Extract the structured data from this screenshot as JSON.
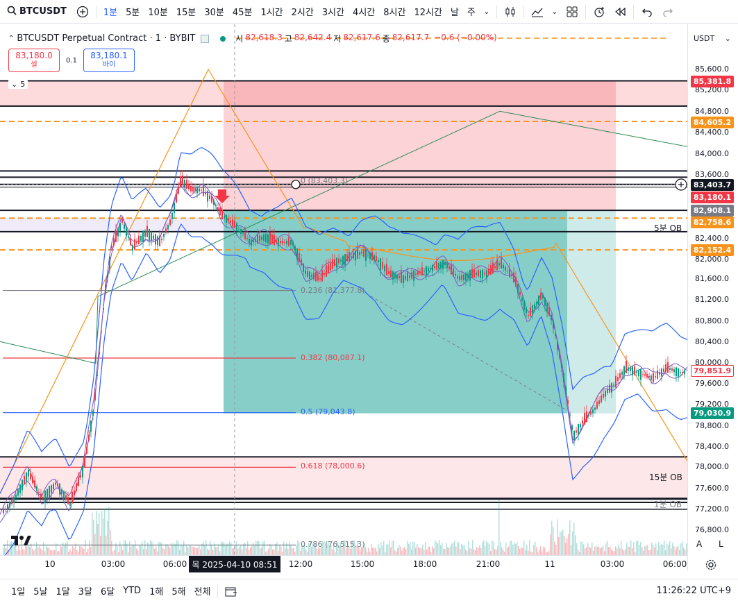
{
  "topbar": {
    "symbol": "BTCUSDT",
    "intervals": [
      "1분",
      "5분",
      "10분",
      "15분",
      "30분",
      "45분",
      "1시간",
      "2시간",
      "3시간",
      "4시간",
      "8시간",
      "12시간",
      "날",
      "주"
    ],
    "active_interval": "1분"
  },
  "legend": {
    "title": "BTCUSDT Perpetual Contract · 1 · BYBIT",
    "open_k": "시",
    "open_v": "82,618.3",
    "high_k": "고",
    "high_v": "82,642.4",
    "low_k": "저",
    "low_v": "82,617.6",
    "close_k": "종",
    "close_v": "82,617.7",
    "change": "−0.6 (−0.00%)"
  },
  "trade": {
    "sell_price": "83,180.0",
    "sell_label": "셀",
    "spread": "0.1",
    "buy_price": "83,180.1",
    "buy_label": "바이",
    "collapse_count": "5"
  },
  "price_axis": {
    "currency": "USDT",
    "ticks": [
      "85,600.0",
      "85,200.0",
      "84,800.0",
      "84,400.0",
      "84,000.0",
      "83,600.0",
      "82,400.0",
      "82,000.0",
      "81,600.0",
      "81,200.0",
      "80,800.0",
      "80,400.0",
      "80,000.0",
      "79,600.0",
      "79,200.0",
      "78,800.0",
      "78,400.0",
      "78,000.0",
      "77,600.0",
      "77,200.0",
      "76,800.0"
    ],
    "tags": [
      {
        "text": "85,381.8",
        "color": "#f23645"
      },
      {
        "text": "84,605.2",
        "color": "#f7931a"
      },
      {
        "text": "83,403.7",
        "color": "#131722"
      },
      {
        "text": "83,180.1",
        "color": "#f23645"
      },
      {
        "text": "82,908.1",
        "color": "#787b86"
      },
      {
        "text": "82,758.6",
        "color": "#f7931a"
      },
      {
        "text": "82,152.4",
        "color": "#f7931a"
      },
      {
        "text": "79,851.9",
        "color": "#ffffff"
      },
      {
        "text": "79,030.9",
        "color": "#089981"
      }
    ],
    "auto": "A",
    "log": "L"
  },
  "time_axis": {
    "labels": [
      "10",
      "03:00",
      "06:00",
      "12:00",
      "15:00",
      "18:00",
      "21:00",
      "11",
      "03:00",
      "06:00"
    ],
    "crosshair_label": "목 2025-04-10   08:51"
  },
  "fib": [
    {
      "label": "0 (83,403.3)",
      "color": "#787b86"
    },
    {
      "label": "0.236 (81,377.8)",
      "color": "#787b86"
    },
    {
      "label": "0.382 (80,087.1)",
      "color": "#f23645"
    },
    {
      "label": "0.5 (79,043.8)",
      "color": "#2962ff"
    },
    {
      "label": "0.618 (78,000.6)",
      "color": "#f23645"
    },
    {
      "label": "0.786 (76,515.3)",
      "color": "#787b86"
    }
  ],
  "annotations": {
    "ob5": "5분 OB",
    "ob15": "15분 OB",
    "ob1": "1분 OB"
  },
  "bottombar": {
    "ranges": [
      "1일",
      "5날",
      "1달",
      "3달",
      "6달",
      "YTD",
      "1해",
      "5해",
      "전체"
    ],
    "clock": "11:26:22 UTC+9"
  },
  "colors": {
    "up": "#089981",
    "down": "#f23645",
    "accent": "#2962ff",
    "orange": "#f7931a",
    "green_zone": "#26a69a",
    "red_zone": "#f23645"
  },
  "chart_data": {
    "type": "candlestick",
    "title": "BTCUSDT Perpetual Contract · 1 · BYBIT",
    "ylim": [
      76500,
      85900
    ],
    "price_path": [
      [
        0,
        77100
      ],
      [
        20,
        77400
      ],
      [
        40,
        77900
      ],
      [
        60,
        77400
      ],
      [
        80,
        77700
      ],
      [
        100,
        77300
      ],
      [
        120,
        78000
      ],
      [
        135,
        79200
      ],
      [
        150,
        81300
      ],
      [
        160,
        82200
      ],
      [
        175,
        82700
      ],
      [
        190,
        82200
      ],
      [
        210,
        82500
      ],
      [
        230,
        82300
      ],
      [
        245,
        82700
      ],
      [
        260,
        83500
      ],
      [
        275,
        83300
      ],
      [
        290,
        83300
      ],
      [
        305,
        83100
      ],
      [
        320,
        82800
      ],
      [
        340,
        82600
      ],
      [
        360,
        82300
      ],
      [
        380,
        82400
      ],
      [
        400,
        82300
      ],
      [
        420,
        82300
      ],
      [
        440,
        81700
      ],
      [
        460,
        81600
      ],
      [
        480,
        81900
      ],
      [
        500,
        82000
      ],
      [
        520,
        82100
      ],
      [
        540,
        82000
      ],
      [
        560,
        81700
      ],
      [
        580,
        81600
      ],
      [
        600,
        81700
      ],
      [
        620,
        81800
      ],
      [
        640,
        81900
      ],
      [
        660,
        81600
      ],
      [
        680,
        81700
      ],
      [
        700,
        81700
      ],
      [
        720,
        81900
      ],
      [
        740,
        81600
      ],
      [
        760,
        80900
      ],
      [
        780,
        81300
      ],
      [
        795,
        80800
      ],
      [
        810,
        79800
      ],
      [
        825,
        78600
      ],
      [
        840,
        78900
      ],
      [
        855,
        79100
      ],
      [
        870,
        79400
      ],
      [
        885,
        79600
      ],
      [
        900,
        79900
      ],
      [
        920,
        79800
      ],
      [
        940,
        79700
      ],
      [
        960,
        79900
      ],
      [
        980,
        79800
      ],
      [
        990,
        79850
      ]
    ],
    "levels": [
      85381.8,
      84605.2,
      83403.7,
      83180.1,
      82908.1,
      82758.6,
      82152.4,
      79851.9,
      79030.9
    ]
  }
}
